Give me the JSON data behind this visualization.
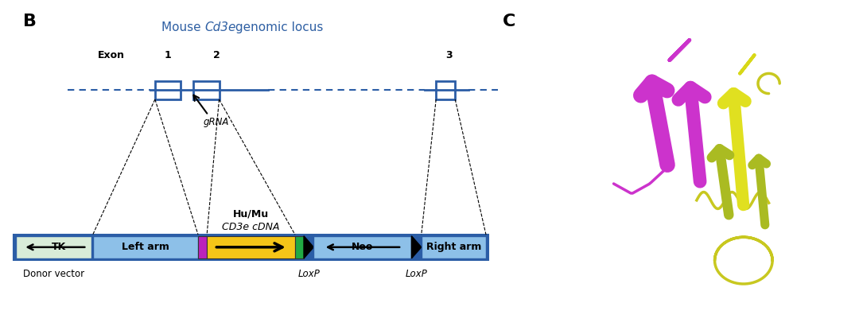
{
  "panel_B_label": "B",
  "panel_C_label": "C",
  "title_normal1": "Mouse ",
  "title_italic": "Cd3e",
  "title_normal2": " genomic locus",
  "title_color": "#2E5FA3",
  "exon_label": "Exon",
  "grna_label": "gRNA",
  "huMu_label1": "Hu/Mu",
  "huMu_label2": "CD3e cDNA",
  "donor_label": "Donor vector",
  "loxP_label": "LoxP",
  "tk_label": "TK",
  "left_arm_label": "Left arm",
  "neo_label": "Neo",
  "right_arm_label": "Right arm",
  "blue_dark": "#2B5DA6",
  "blue_mid": "#5B8FCC",
  "blue_light": "#8DC0E8",
  "yellow": "#F5C518",
  "purple": "#AA22AA",
  "green": "#22AA44",
  "tk_color": "#D8ECD8",
  "white": "#FFFFFF",
  "black": "#000000",
  "fig_width": 10.8,
  "fig_height": 4.2,
  "dpi": 100
}
